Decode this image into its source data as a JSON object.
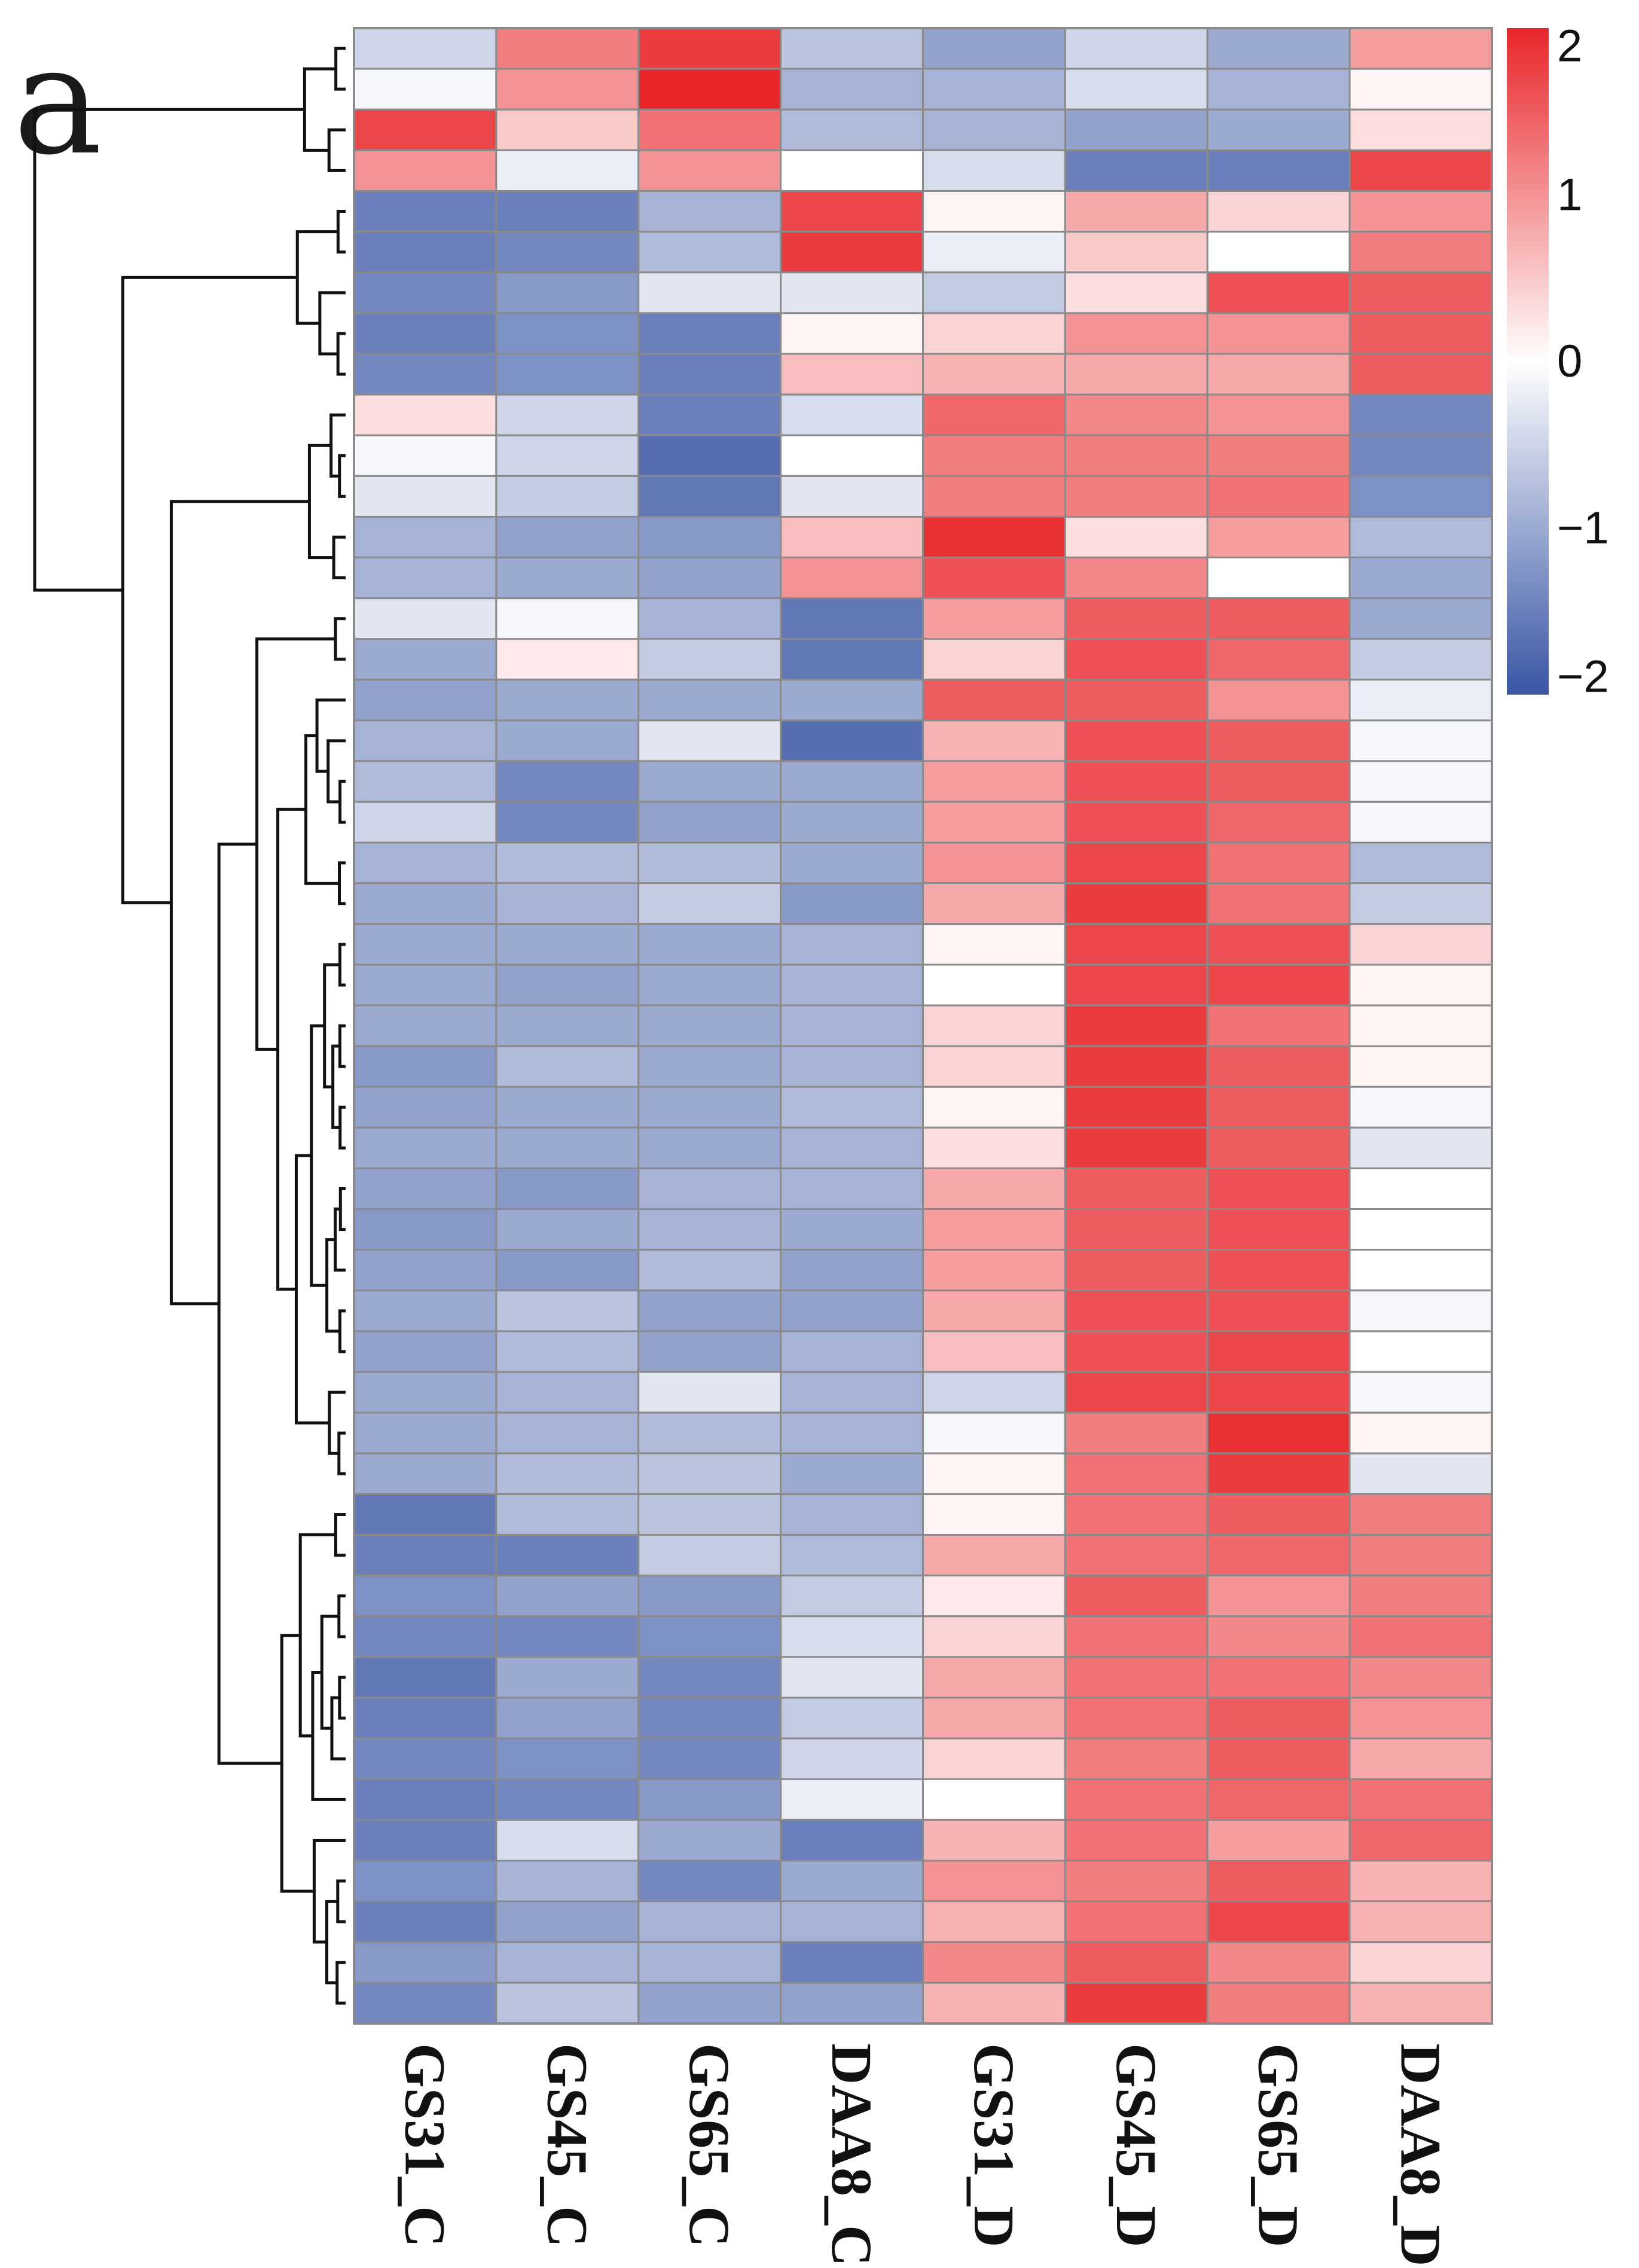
{
  "panel_label": "a",
  "chart_data": {
    "type": "heatmap",
    "title": "",
    "columns": [
      "GS31_C",
      "GS45_C",
      "GS65_C",
      "DAA8_C",
      "GS31_D",
      "GS45_D",
      "GS65_D",
      "DAA8_D"
    ],
    "colorbar": {
      "ticks": [
        {
          "value": 2,
          "label": "2"
        },
        {
          "value": 1,
          "label": "1"
        },
        {
          "value": 0,
          "label": "0"
        },
        {
          "value": -1,
          "label": "−1"
        },
        {
          "value": -2,
          "label": "−2"
        }
      ],
      "range": [
        -2,
        2
      ],
      "low_color": "#3955a4",
      "mid_color": "#ffffff",
      "high_color": "#e8262a"
    },
    "values": [
      [
        -0.5,
        1.2,
        1.8,
        -0.7,
        -1.1,
        -0.5,
        -1.0,
        0.9
      ],
      [
        -0.1,
        1.0,
        2.0,
        -0.9,
        -0.9,
        -0.4,
        -0.9,
        0.1
      ],
      [
        1.7,
        0.5,
        1.3,
        -0.8,
        -0.9,
        -1.1,
        -1.0,
        0.3
      ],
      [
        1.0,
        -0.2,
        1.0,
        0.0,
        -0.4,
        -1.5,
        -1.5,
        1.7
      ],
      [
        -1.5,
        -1.5,
        -0.9,
        1.7,
        0.1,
        0.8,
        0.4,
        1.0
      ],
      [
        -1.5,
        -1.4,
        -0.8,
        1.8,
        -0.2,
        0.5,
        0.0,
        1.2
      ],
      [
        -1.4,
        -1.2,
        -0.3,
        -0.3,
        -0.6,
        0.3,
        1.6,
        1.5
      ],
      [
        -1.5,
        -1.3,
        -1.5,
        0.1,
        0.4,
        1.0,
        1.0,
        1.5
      ],
      [
        -1.4,
        -1.3,
        -1.5,
        0.6,
        0.7,
        0.8,
        0.8,
        1.5
      ],
      [
        0.3,
        -0.5,
        -1.5,
        -0.4,
        1.4,
        1.1,
        1.0,
        -1.4
      ],
      [
        -0.1,
        -0.5,
        -1.7,
        0.0,
        1.2,
        1.2,
        1.2,
        -1.4
      ],
      [
        -0.3,
        -0.6,
        -1.6,
        -0.3,
        1.2,
        1.2,
        1.3,
        -1.3
      ],
      [
        -0.9,
        -1.1,
        -1.2,
        0.6,
        1.9,
        0.3,
        0.9,
        -0.8
      ],
      [
        -0.9,
        -1.0,
        -1.1,
        1.0,
        1.6,
        1.1,
        0.0,
        -1.0
      ],
      [
        -0.3,
        -0.1,
        -0.9,
        -1.6,
        0.9,
        1.5,
        1.5,
        -1.0
      ],
      [
        -1.0,
        0.2,
        -0.6,
        -1.6,
        0.4,
        1.6,
        1.4,
        -0.6
      ],
      [
        -1.1,
        -1.0,
        -1.0,
        -1.0,
        1.5,
        1.5,
        1.0,
        -0.2
      ],
      [
        -0.9,
        -1.0,
        -0.3,
        -1.7,
        0.7,
        1.6,
        1.5,
        -0.1
      ],
      [
        -0.8,
        -1.4,
        -1.0,
        -1.0,
        0.9,
        1.6,
        1.5,
        -0.1
      ],
      [
        -0.5,
        -1.4,
        -1.1,
        -1.0,
        0.9,
        1.6,
        1.4,
        -0.1
      ],
      [
        -0.9,
        -0.8,
        -0.8,
        -1.0,
        1.0,
        1.7,
        1.3,
        -0.8
      ],
      [
        -1.0,
        -0.9,
        -0.6,
        -1.2,
        0.8,
        1.8,
        1.3,
        -0.6
      ],
      [
        -1.0,
        -1.0,
        -1.0,
        -0.9,
        0.1,
        1.7,
        1.6,
        0.4
      ],
      [
        -1.0,
        -1.1,
        -1.0,
        -0.9,
        0.0,
        1.7,
        1.7,
        0.1
      ],
      [
        -1.0,
        -1.0,
        -1.0,
        -0.9,
        0.4,
        1.8,
        1.3,
        0.1
      ],
      [
        -1.2,
        -0.8,
        -1.0,
        -0.9,
        0.4,
        1.8,
        1.5,
        0.1
      ],
      [
        -1.1,
        -1.0,
        -1.0,
        -0.8,
        0.1,
        1.8,
        1.5,
        -0.1
      ],
      [
        -1.0,
        -1.0,
        -1.0,
        -0.9,
        0.3,
        1.8,
        1.5,
        -0.3
      ],
      [
        -1.1,
        -1.2,
        -0.9,
        -0.9,
        0.8,
        1.5,
        1.6,
        0.0
      ],
      [
        -1.2,
        -1.0,
        -0.9,
        -1.0,
        0.9,
        1.5,
        1.6,
        0.0
      ],
      [
        -1.1,
        -1.2,
        -0.8,
        -1.1,
        0.9,
        1.5,
        1.6,
        0.0
      ],
      [
        -1.0,
        -0.7,
        -1.1,
        -1.1,
        0.8,
        1.6,
        1.6,
        -0.1
      ],
      [
        -1.1,
        -0.8,
        -1.1,
        -0.9,
        0.6,
        1.6,
        1.7,
        0.0
      ],
      [
        -1.0,
        -0.9,
        -0.3,
        -0.9,
        -0.5,
        1.7,
        1.7,
        -0.1
      ],
      [
        -1.0,
        -0.9,
        -0.8,
        -0.9,
        -0.1,
        1.2,
        1.9,
        0.1
      ],
      [
        -1.0,
        -0.8,
        -0.7,
        -1.0,
        0.1,
        1.3,
        1.8,
        -0.3
      ],
      [
        -1.6,
        -0.8,
        -0.7,
        -0.9,
        0.1,
        1.3,
        1.5,
        1.2
      ],
      [
        -1.5,
        -1.5,
        -0.6,
        -0.8,
        0.8,
        1.3,
        1.4,
        1.2
      ],
      [
        -1.3,
        -1.1,
        -1.2,
        -0.6,
        0.2,
        1.5,
        1.0,
        1.2
      ],
      [
        -1.4,
        -1.4,
        -1.3,
        -0.4,
        0.4,
        1.3,
        1.1,
        1.3
      ],
      [
        -1.6,
        -1.0,
        -1.4,
        -0.3,
        0.8,
        1.3,
        1.3,
        1.1
      ],
      [
        -1.5,
        -1.1,
        -1.4,
        -0.6,
        0.8,
        1.3,
        1.5,
        1.0
      ],
      [
        -1.4,
        -1.3,
        -1.4,
        -0.5,
        0.4,
        1.2,
        1.5,
        0.8
      ],
      [
        -1.5,
        -1.4,
        -1.2,
        -0.2,
        0.0,
        1.3,
        1.4,
        1.3
      ],
      [
        -1.5,
        -0.4,
        -1.0,
        -1.5,
        0.7,
        1.3,
        0.9,
        1.4
      ],
      [
        -1.3,
        -0.9,
        -1.4,
        -1.0,
        1.0,
        1.2,
        1.5,
        0.7
      ],
      [
        -1.5,
        -1.1,
        -0.9,
        -0.9,
        0.7,
        1.3,
        1.7,
        0.7
      ],
      [
        -1.2,
        -0.9,
        -0.9,
        -1.5,
        1.1,
        1.5,
        1.1,
        0.4
      ],
      [
        -1.4,
        -0.7,
        -1.1,
        -1.1,
        0.7,
        1.8,
        1.2,
        0.7
      ]
    ]
  }
}
